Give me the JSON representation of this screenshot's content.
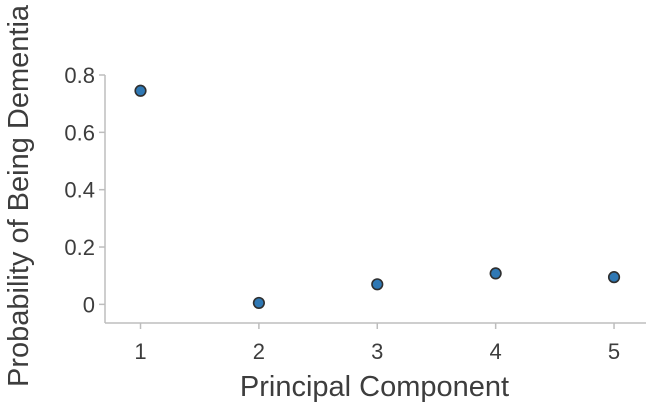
{
  "chart_data": {
    "type": "scatter",
    "title": "",
    "xlabel": "Principal Component",
    "ylabel": "Probability of Being Dementia",
    "x": [
      1,
      2,
      3,
      4,
      5
    ],
    "y": [
      0.745,
      0.005,
      0.07,
      0.108,
      0.095
    ],
    "x_ticks": [
      "1",
      "2",
      "3",
      "4",
      "5"
    ],
    "y_ticks": [
      {
        "value": 0,
        "label": "0"
      },
      {
        "value": 0.2,
        "label": "0.2"
      },
      {
        "value": 0.4,
        "label": "0.4"
      },
      {
        "value": 0.6,
        "label": "0.6"
      },
      {
        "value": 0.8,
        "label": "0.8"
      }
    ],
    "xlim": [
      0.7,
      5.27
    ],
    "ylim": [
      -0.065,
      0.8
    ],
    "grid": false,
    "legend": "none",
    "marker_color": "#2f78b4",
    "marker_edge_color": "#2f2f2f",
    "axis_color": "#bdbdbd",
    "text_color": "#3d3d3d"
  }
}
